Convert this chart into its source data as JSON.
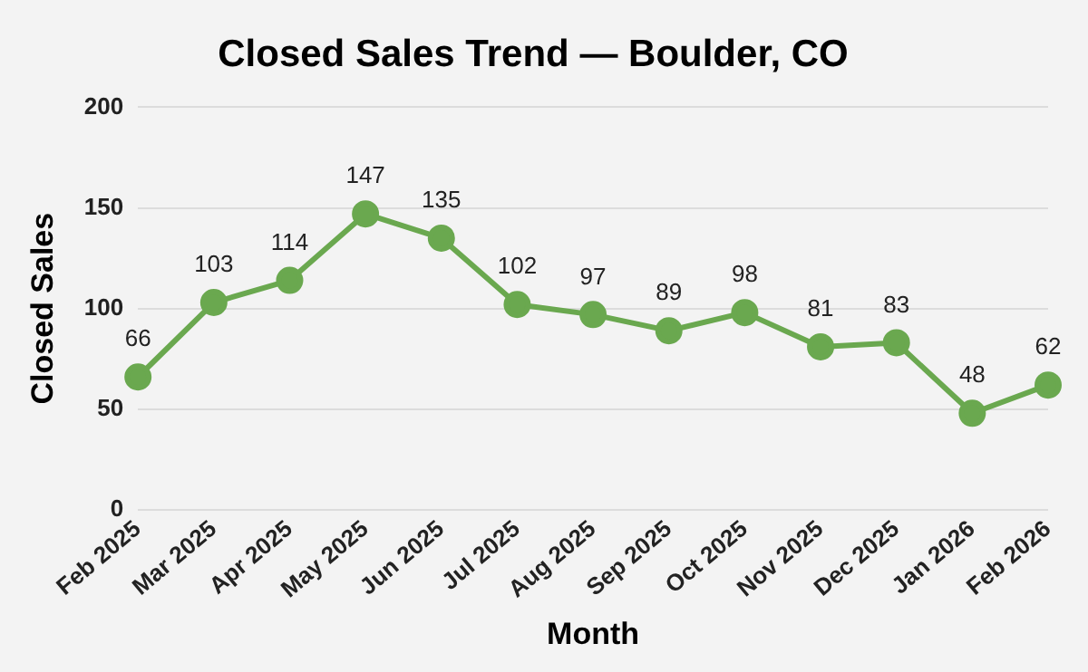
{
  "chart_data": {
    "type": "line",
    "title": "Closed Sales Trend — Boulder, CO",
    "xlabel": "Month",
    "ylabel": "Closed Sales",
    "categories": [
      "Feb 2025",
      "Mar 2025",
      "Apr 2025",
      "May 2025",
      "Jun 2025",
      "Jul 2025",
      "Aug 2025",
      "Sep 2025",
      "Oct 2025",
      "Nov 2025",
      "Dec 2025",
      "Jan 2026",
      "Feb 2026"
    ],
    "series": [
      {
        "color": "#6aa84f",
        "values": [
          66,
          103,
          114,
          147,
          135,
          102,
          97,
          89,
          98,
          81,
          83,
          48,
          62
        ]
      }
    ],
    "ylim": [
      0,
      200
    ],
    "yticks": [
      0,
      50,
      100,
      150,
      200
    ],
    "grid": "y",
    "marker": "circle",
    "line_style": "solid",
    "data_labels": true,
    "legend": false
  }
}
